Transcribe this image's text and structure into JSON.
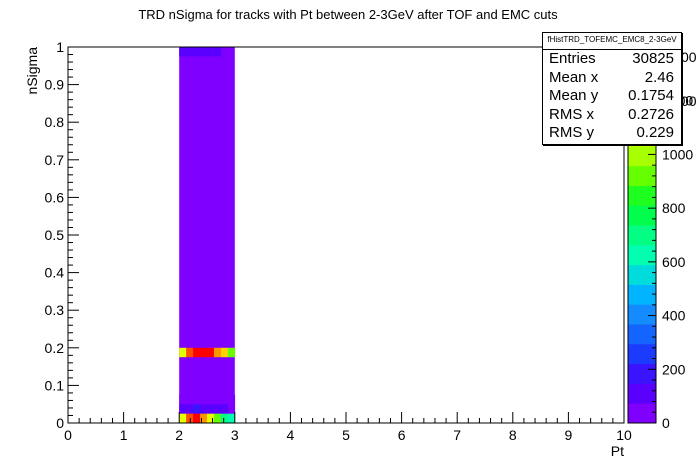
{
  "chart_data": {
    "type": "heatmap",
    "title": "TRD nSigma for tracks with Pt between 2-3GeV after TOF and EMC cuts",
    "xlabel": "Pt",
    "ylabel": "nSigma",
    "xlim": [
      0,
      10
    ],
    "ylim": [
      0,
      1
    ],
    "x_ticks": [
      "0",
      "1",
      "2",
      "3",
      "4",
      "5",
      "6",
      "7",
      "8",
      "9",
      "10"
    ],
    "y_ticks": [
      "0",
      "0.1",
      "0.2",
      "0.3",
      "0.4",
      "0.5",
      "0.6",
      "0.7",
      "0.8",
      "0.9",
      "1"
    ],
    "z_ticks": [
      "0",
      "200",
      "400",
      "600",
      "800",
      "1000",
      "1200"
    ],
    "z_partial_ticks": [
      "00",
      "00"
    ],
    "zlim": [
      0,
      1400
    ],
    "bin_x_edges": [
      2.0,
      2.125,
      2.25,
      2.375,
      2.5,
      2.625,
      2.75,
      2.875,
      3.0
    ],
    "base_fill": {
      "x_range": [
        2,
        3
      ],
      "y_range": [
        0,
        1
      ],
      "value": 15
    },
    "cells": [
      {
        "x": [
          2.0,
          2.125
        ],
        "y": [
          0,
          0.025
        ],
        "value": 1100
      },
      {
        "x": [
          2.125,
          2.25
        ],
        "y": [
          0,
          0.025
        ],
        "value": 1280
      },
      {
        "x": [
          2.25,
          2.375
        ],
        "y": [
          0,
          0.025
        ],
        "value": 1330
      },
      {
        "x": [
          2.375,
          2.5
        ],
        "y": [
          0,
          0.025
        ],
        "value": 1200
      },
      {
        "x": [
          2.5,
          2.625
        ],
        "y": [
          0,
          0.025
        ],
        "value": 1050
      },
      {
        "x": [
          2.625,
          2.75
        ],
        "y": [
          0,
          0.025
        ],
        "value": 950
      },
      {
        "x": [
          2.75,
          2.875
        ],
        "y": [
          0,
          0.025
        ],
        "value": 700
      },
      {
        "x": [
          2.875,
          3.0
        ],
        "y": [
          0,
          0.025
        ],
        "value": 650
      },
      {
        "x": [
          2.0,
          2.125
        ],
        "y": [
          0.025,
          0.05
        ],
        "value": 100
      },
      {
        "x": [
          2.125,
          2.25
        ],
        "y": [
          0.025,
          0.05
        ],
        "value": 120
      },
      {
        "x": [
          2.25,
          2.375
        ],
        "y": [
          0.025,
          0.05
        ],
        "value": 150
      },
      {
        "x": [
          2.375,
          2.5
        ],
        "y": [
          0.025,
          0.05
        ],
        "value": 110
      },
      {
        "x": [
          2.5,
          2.625
        ],
        "y": [
          0.025,
          0.05
        ],
        "value": 90
      },
      {
        "x": [
          2.625,
          2.75
        ],
        "y": [
          0.025,
          0.05
        ],
        "value": 80
      },
      {
        "x": [
          2.75,
          2.875
        ],
        "y": [
          0.025,
          0.05
        ],
        "value": 130
      },
      {
        "x": [
          2.875,
          3.0
        ],
        "y": [
          0.025,
          0.05
        ],
        "value": 60
      },
      {
        "x": [
          2.0,
          3.0
        ],
        "y": [
          0.05,
          0.075
        ],
        "value": 40
      },
      {
        "x": [
          2.0,
          2.125
        ],
        "y": [
          0.175,
          0.2
        ],
        "value": 1100
      },
      {
        "x": [
          2.125,
          2.25
        ],
        "y": [
          0.175,
          0.2
        ],
        "value": 1300
      },
      {
        "x": [
          2.25,
          2.375
        ],
        "y": [
          0.175,
          0.2
        ],
        "value": 1400
      },
      {
        "x": [
          2.375,
          2.5
        ],
        "y": [
          0.175,
          0.2
        ],
        "value": 1400
      },
      {
        "x": [
          2.5,
          2.625
        ],
        "y": [
          0.175,
          0.2
        ],
        "value": 1380
      },
      {
        "x": [
          2.625,
          2.75
        ],
        "y": [
          0.175,
          0.2
        ],
        "value": 1250
      },
      {
        "x": [
          2.75,
          2.875
        ],
        "y": [
          0.175,
          0.2
        ],
        "value": 1150
      },
      {
        "x": [
          2.875,
          3.0
        ],
        "y": [
          0.175,
          0.2
        ],
        "value": 950
      },
      {
        "x": [
          2.0,
          2.75
        ],
        "y": [
          0.975,
          1.0
        ],
        "value": 90
      }
    ],
    "stats": {
      "name": "fHistTRD_TOFEMC_EMC8_2-3GeV",
      "rows": [
        {
          "label": "Entries",
          "value": "30825"
        },
        {
          "label": "Mean x",
          "value": "2.46"
        },
        {
          "label": "Mean y",
          "value": "0.1754"
        },
        {
          "label": "RMS x",
          "value": "0.2726"
        },
        {
          "label": "RMS y",
          "value": "0.229"
        }
      ]
    },
    "palette": [
      "#7f00ff",
      "#5a00ff",
      "#3a14ff",
      "#1b3cff",
      "#1464ff",
      "#148cff",
      "#00b4ff",
      "#00dcdc",
      "#00ffb0",
      "#00ff82",
      "#00ff4c",
      "#1fff1f",
      "#66ff00",
      "#a8ff00",
      "#e6ff00",
      "#ffd200",
      "#ff9600",
      "#ff5000",
      "#ff0000"
    ]
  }
}
